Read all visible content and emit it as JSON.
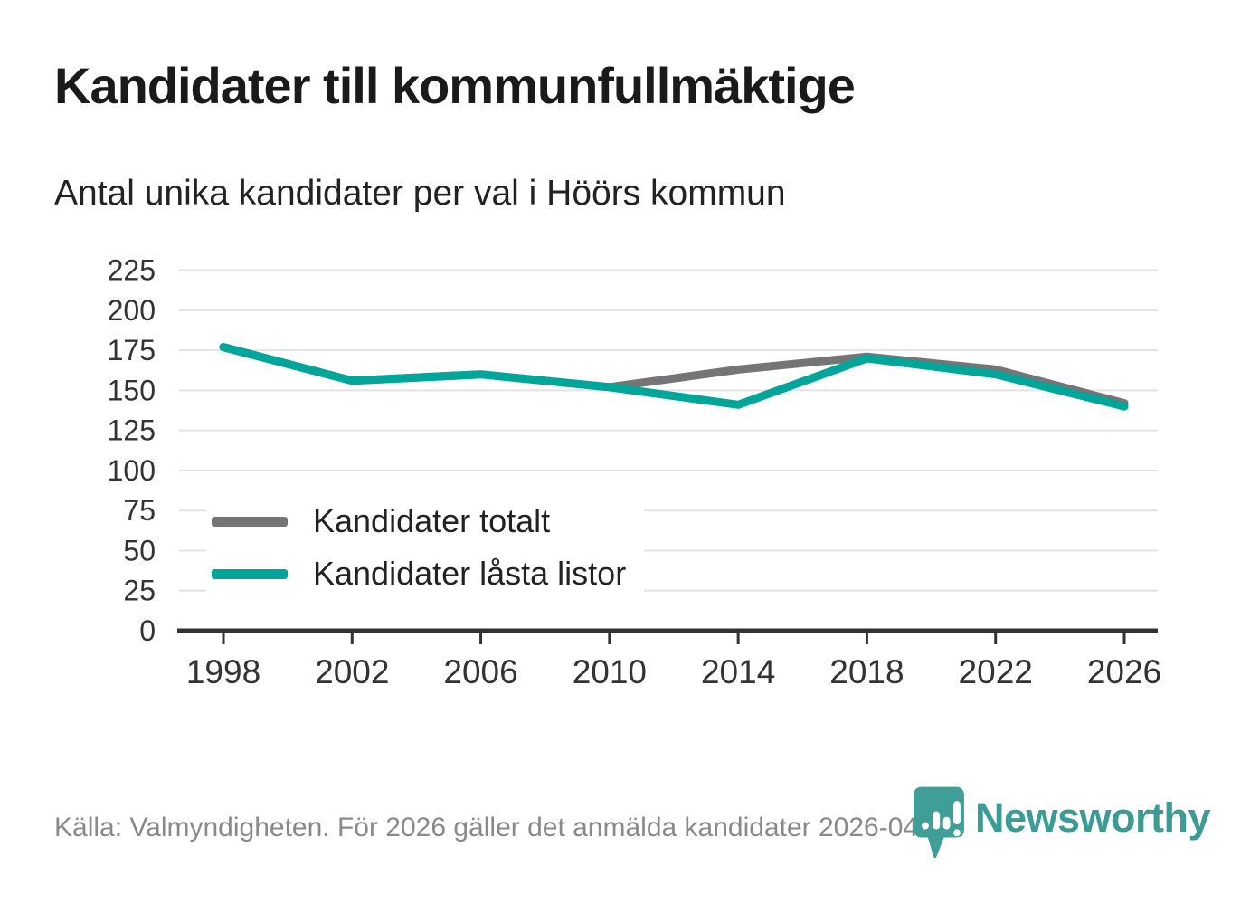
{
  "header": {
    "title": "Kandidater till kommunfullmäktige",
    "subtitle": "Antal unika kandidater per val i Höörs kommun"
  },
  "footer": {
    "source_text": "Källa: Valmyndigheten. För 2026 gäller det anmälda kandidater 2026-04-10.",
    "brand_name": "Newsworthy"
  },
  "colors": {
    "series_total": "#757575",
    "series_locked": "#00a69a",
    "gridline": "#e3e3e3",
    "axis_line": "#333333",
    "tick_label": "#333333",
    "title_text": "#1a1a1a",
    "footer_text": "#898989",
    "brand_teal": "#3b9c93"
  },
  "chart_data": {
    "type": "line",
    "title": "Kandidater till kommunfullmäktige",
    "subtitle": "Antal unika kandidater per val i Höörs kommun",
    "categories": [
      "1998",
      "2002",
      "2006",
      "2010",
      "2014",
      "2018",
      "2022",
      "2026"
    ],
    "series": [
      {
        "name": "Kandidater totalt",
        "color": "#757575",
        "values": [
          177,
          156,
          160,
          152,
          163,
          171,
          163,
          142
        ]
      },
      {
        "name": "Kandidater låsta listor",
        "color": "#00a69a",
        "values": [
          177,
          156,
          160,
          152,
          141,
          170,
          160,
          140
        ]
      }
    ],
    "xlabel": "",
    "ylabel": "",
    "ylim": [
      0,
      225
    ],
    "ytick_step": 25,
    "yticks": [
      0,
      25,
      50,
      75,
      100,
      125,
      150,
      175,
      200,
      225
    ],
    "grid": "horizontal",
    "legend_position": "inside-lower-left"
  }
}
